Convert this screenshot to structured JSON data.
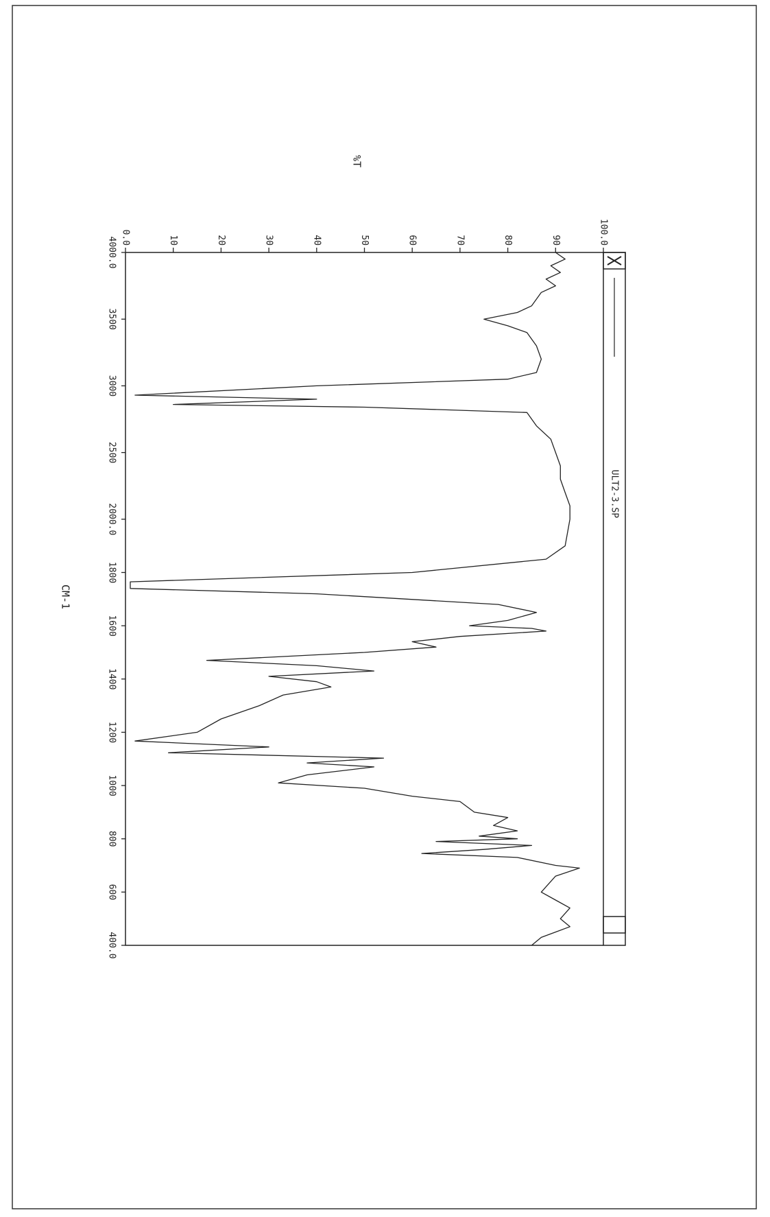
{
  "chart_data": {
    "type": "line",
    "title": "ULT2-3.SP",
    "ylabel": "%T",
    "xlabel": "CM-1",
    "color": "#222222",
    "xlim": [
      4000,
      400
    ],
    "xticks": [
      {
        "value": 4000,
        "label": "4000.0"
      },
      3500,
      3000,
      2500,
      {
        "value": 2000,
        "label": "2000.0"
      },
      1800,
      1600,
      1400,
      1200,
      1000,
      800,
      600,
      {
        "value": 400,
        "label": "400.0"
      }
    ],
    "ylim": [
      0,
      100
    ],
    "yticks": [
      {
        "value": 0,
        "label": "0.0"
      },
      10,
      20,
      30,
      40,
      50,
      60,
      70,
      80,
      90,
      {
        "value": 100,
        "label": "100.0"
      }
    ],
    "x": [
      4000,
      3950,
      3900,
      3850,
      3800,
      3750,
      3700,
      3650,
      3600,
      3550,
      3500,
      3450,
      3400,
      3300,
      3200,
      3100,
      3050,
      3000,
      2930,
      2900,
      2860,
      2840,
      2800,
      2700,
      2600,
      2500,
      2400,
      2300,
      2200,
      2100,
      2000,
      1900,
      1850,
      1800,
      1765,
      1740,
      1720,
      1680,
      1650,
      1620,
      1600,
      1590,
      1580,
      1560,
      1540,
      1520,
      1500,
      1470,
      1450,
      1430,
      1410,
      1390,
      1370,
      1340,
      1300,
      1250,
      1200,
      1167,
      1145,
      1123,
      1103,
      1085,
      1070,
      1040,
      1010,
      990,
      960,
      940,
      900,
      880,
      850,
      830,
      810,
      800,
      790,
      775,
      760,
      745,
      730,
      700,
      690,
      660,
      620,
      600,
      570,
      540,
      500,
      470,
      450,
      430,
      400
    ],
    "values": [
      90,
      92,
      89,
      91,
      88,
      90,
      87,
      86,
      85,
      82,
      75,
      80,
      84,
      86,
      87,
      86,
      80,
      40,
      2,
      40,
      10,
      50,
      84,
      86,
      89,
      90,
      91,
      91,
      92,
      93,
      93,
      92,
      88,
      60,
      1,
      1,
      40,
      78,
      86,
      80,
      72,
      85,
      88,
      70,
      60,
      65,
      50,
      17,
      40,
      52,
      30,
      40,
      43,
      33,
      28,
      20,
      15,
      2,
      30,
      9,
      54,
      38,
      52,
      38,
      32,
      50,
      60,
      70,
      73,
      80,
      77,
      82,
      74,
      82,
      65,
      85,
      75,
      62,
      82,
      90,
      95,
      90,
      88,
      87,
      90,
      93,
      91,
      93,
      90,
      87,
      85
    ]
  }
}
